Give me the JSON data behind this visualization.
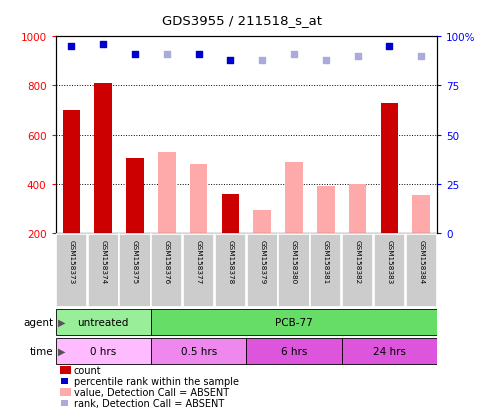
{
  "title": "GDS3955 / 211518_s_at",
  "samples": [
    "GSM158373",
    "GSM158374",
    "GSM158375",
    "GSM158376",
    "GSM158377",
    "GSM158378",
    "GSM158379",
    "GSM158380",
    "GSM158381",
    "GSM158382",
    "GSM158383",
    "GSM158384"
  ],
  "count_values": [
    700,
    810,
    505,
    null,
    null,
    360,
    null,
    null,
    null,
    null,
    730,
    null
  ],
  "absent_value_values": [
    null,
    null,
    null,
    530,
    480,
    null,
    295,
    490,
    390,
    400,
    null,
    355
  ],
  "percentile_rank_present": [
    95,
    96,
    91,
    null,
    91,
    88,
    null,
    null,
    null,
    null,
    95,
    null
  ],
  "percentile_rank_absent": [
    null,
    null,
    null,
    91,
    null,
    null,
    88,
    91,
    88,
    90,
    null,
    90
  ],
  "ylim_left": [
    200,
    1000
  ],
  "ylim_right": [
    0,
    100
  ],
  "yticks_left": [
    200,
    400,
    600,
    800,
    1000
  ],
  "yticks_right": [
    0,
    25,
    50,
    75,
    100
  ],
  "grid_lines": [
    400,
    600,
    800
  ],
  "bar_width": 0.55,
  "count_color": "#cc0000",
  "absent_value_color": "#ffaaaa",
  "present_rank_color": "#0000cc",
  "absent_rank_color": "#aaaadd",
  "bg_color": "#f0f0f0",
  "plot_area_color": "#ffffff",
  "sample_box_color": "#cccccc",
  "agent_untreated_color": "#99ee99",
  "agent_pcb_color": "#66dd66",
  "time_0_color": "#ffbbff",
  "time_05_color": "#ee88ee",
  "time_6_color": "#dd55dd",
  "time_24_color": "#dd55dd",
  "legend_items": [
    {
      "color": "#cc0000",
      "label": "count",
      "type": "rect"
    },
    {
      "color": "#0000cc",
      "label": "percentile rank within the sample",
      "type": "square"
    },
    {
      "color": "#ffaaaa",
      "label": "value, Detection Call = ABSENT",
      "type": "rect"
    },
    {
      "color": "#aaaadd",
      "label": "rank, Detection Call = ABSENT",
      "type": "square"
    }
  ]
}
